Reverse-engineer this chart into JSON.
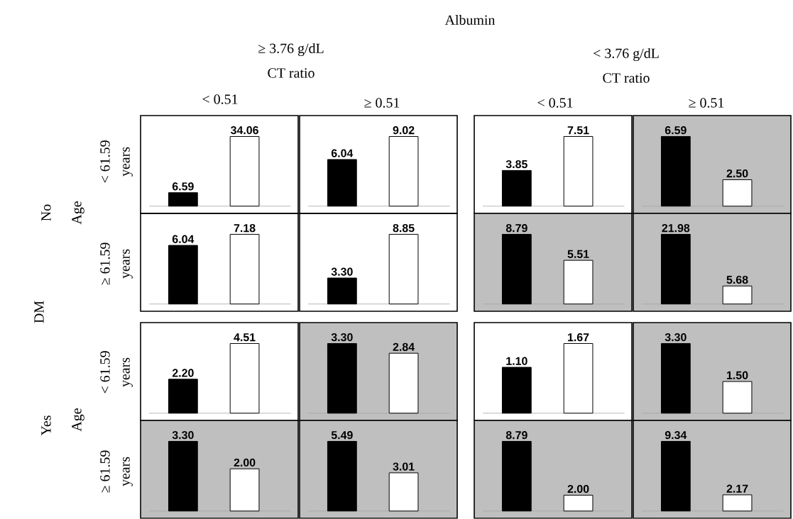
{
  "chart_data": [
    {
      "type": "other",
      "annotations": [
        "Albumin",
        "≥ 3.76 g/dL",
        "CT ratio",
        "< 3.76 g/dL",
        "CT ratio",
        "< 0.51",
        "≥ 0.51",
        "< 0.51",
        "≥ 0.51",
        "DM",
        "No",
        "Age",
        "< 61.59",
        "years",
        "≥ 61.59",
        "years",
        "Yes",
        "Age",
        "< 61.59",
        "years",
        "≥ 61.59",
        "years"
      ]
    },
    {
      "type": "bar",
      "categories": [
        null,
        null
      ],
      "values": [
        6.59,
        34.06
      ],
      "value_labels": [
        "6.59",
        "34.06"
      ],
      "colors": [
        "#000000",
        "#ffffff"
      ]
    },
    {
      "type": "bar",
      "categories": [
        null,
        null
      ],
      "values": [
        6.04,
        9.02
      ],
      "value_labels": [
        "6.04",
        "9.02"
      ],
      "colors": [
        "#000000",
        "#ffffff"
      ]
    },
    {
      "type": "bar",
      "categories": [
        null,
        null
      ],
      "values": [
        3.85,
        7.51
      ],
      "value_labels": [
        "3.85",
        "7.51"
      ],
      "colors": [
        "#000000",
        "#ffffff"
      ]
    },
    {
      "type": "bar",
      "categories": [
        null,
        null
      ],
      "values": [
        6.59,
        2.5
      ],
      "value_labels": [
        "6.59",
        "2.50"
      ],
      "colors": [
        "#000000",
        "#ffffff"
      ]
    },
    {
      "type": "bar",
      "categories": [
        null,
        null
      ],
      "values": [
        6.04,
        7.18
      ],
      "value_labels": [
        "6.04",
        "7.18"
      ],
      "colors": [
        "#000000",
        "#ffffff"
      ]
    },
    {
      "type": "bar",
      "categories": [
        null,
        null
      ],
      "values": [
        3.3,
        8.85
      ],
      "value_labels": [
        "3.30",
        "8.85"
      ],
      "colors": [
        "#000000",
        "#ffffff"
      ]
    },
    {
      "type": "bar",
      "categories": [
        null,
        null
      ],
      "values": [
        8.79,
        5.51
      ],
      "value_labels": [
        "8.79",
        "5.51"
      ],
      "colors": [
        "#000000",
        "#ffffff"
      ]
    },
    {
      "type": "bar",
      "categories": [
        null,
        null
      ],
      "values": [
        21.98,
        5.68
      ],
      "value_labels": [
        "21.98",
        "5.68"
      ],
      "colors": [
        "#000000",
        "#ffffff"
      ]
    },
    {
      "type": "bar",
      "categories": [
        null,
        null
      ],
      "values": [
        2.2,
        4.51
      ],
      "value_labels": [
        "2.20",
        "4.51"
      ],
      "colors": [
        "#000000",
        "#ffffff"
      ]
    },
    {
      "type": "bar",
      "categories": [
        null,
        null
      ],
      "values": [
        3.3,
        2.84
      ],
      "value_labels": [
        "3.30",
        "2.84"
      ],
      "colors": [
        "#000000",
        "#ffffff"
      ]
    },
    {
      "type": "bar",
      "categories": [
        null,
        null
      ],
      "values": [
        1.1,
        1.67
      ],
      "value_labels": [
        "1.10",
        "1.67"
      ],
      "colors": [
        "#000000",
        "#ffffff"
      ]
    },
    {
      "type": "bar",
      "categories": [
        null,
        null
      ],
      "values": [
        3.3,
        1.5
      ],
      "value_labels": [
        "3.30",
        "1.50"
      ],
      "colors": [
        "#000000",
        "#ffffff"
      ]
    },
    {
      "type": "bar",
      "categories": [
        null,
        null
      ],
      "values": [
        3.3,
        2.0
      ],
      "value_labels": [
        "3.30",
        "2.00"
      ],
      "colors": [
        "#000000",
        "#ffffff"
      ]
    },
    {
      "type": "bar",
      "categories": [
        null,
        null
      ],
      "values": [
        5.49,
        3.01
      ],
      "value_labels": [
        "5.49",
        "3.01"
      ],
      "colors": [
        "#000000",
        "#ffffff"
      ]
    },
    {
      "type": "bar",
      "categories": [
        null,
        null
      ],
      "values": [
        8.79,
        2.0
      ],
      "value_labels": [
        "8.79",
        "2.00"
      ],
      "colors": [
        "#000000",
        "#ffffff"
      ]
    },
    {
      "type": "bar",
      "categories": [
        null,
        null
      ],
      "values": [
        9.34,
        2.17
      ],
      "value_labels": [
        "9.34",
        "2.17"
      ],
      "colors": [
        "#000000",
        "#ffffff"
      ]
    }
  ]
}
